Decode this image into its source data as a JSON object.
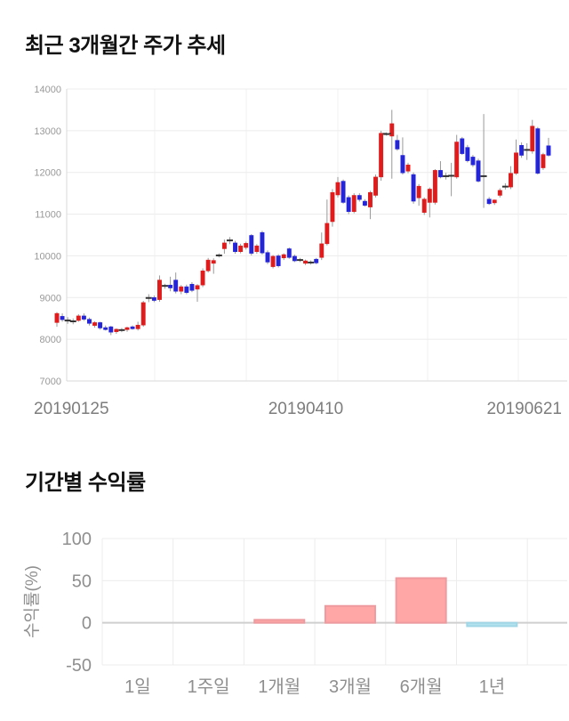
{
  "sections": {
    "price_trend": {
      "title": "최근 3개월간 주가 추세"
    },
    "period_returns": {
      "title": "기간별 수익률"
    }
  },
  "chart_data": [
    {
      "id": "price_trend",
      "type": "candlestick",
      "title": "최근 3개월간 주가 추세",
      "y_axis": {
        "min": 7000,
        "max": 14000,
        "ticks": [
          14000,
          13000,
          12000,
          11000,
          10000,
          9000,
          8000,
          7000
        ]
      },
      "x_axis": {
        "labels": [
          "20190125",
          "20190410",
          "20190621"
        ]
      },
      "grid": true,
      "legend": "none",
      "colors": {
        "up": "#e01b1b",
        "down": "#2424d9",
        "wick": "#999999",
        "doji_dash": "#333333",
        "grid": "#ececec",
        "vgrid": "#f2f2f2",
        "axis": "#d9d9d9",
        "tick_text": "#999999",
        "date_text": "#7d7d7d"
      },
      "annotations": [
        {
          "type": "dashed-line",
          "price": 12930,
          "from_index": 60,
          "to_index": 62
        }
      ],
      "candles_format": [
        "open",
        "high",
        "low",
        "close"
      ],
      "candles": [
        [
          8400,
          8650,
          8300,
          8620
        ],
        [
          8550,
          8620,
          8420,
          8470
        ],
        [
          8450,
          8530,
          8370,
          8450
        ],
        [
          8430,
          8500,
          8360,
          8430
        ],
        [
          8450,
          8600,
          8420,
          8560
        ],
        [
          8560,
          8620,
          8440,
          8480
        ],
        [
          8480,
          8520,
          8330,
          8380
        ],
        [
          8330,
          8430,
          8280,
          8400
        ],
        [
          8400,
          8420,
          8230,
          8270
        ],
        [
          8280,
          8330,
          8210,
          8230
        ],
        [
          8300,
          8320,
          8100,
          8170
        ],
        [
          8180,
          8260,
          8130,
          8240
        ],
        [
          8220,
          8270,
          8170,
          8220
        ],
        [
          8230,
          8300,
          8180,
          8280
        ],
        [
          8300,
          8330,
          8230,
          8250
        ],
        [
          8250,
          8420,
          8210,
          8340
        ],
        [
          8340,
          8920,
          8300,
          8880
        ],
        [
          8990,
          9080,
          8890,
          8990
        ],
        [
          9000,
          9050,
          8890,
          8930
        ],
        [
          8950,
          9530,
          8900,
          9420
        ],
        [
          9280,
          9330,
          9210,
          9280
        ],
        [
          9300,
          9500,
          9150,
          9230
        ],
        [
          9420,
          9600,
          9100,
          9150
        ],
        [
          9150,
          9300,
          9080,
          9260
        ],
        [
          9260,
          9310,
          9080,
          9120
        ],
        [
          9320,
          9370,
          9130,
          9170
        ],
        [
          9200,
          9320,
          8900,
          9290
        ],
        [
          9300,
          9700,
          9250,
          9640
        ],
        [
          9640,
          9950,
          9600,
          9900
        ],
        [
          9820,
          9940,
          9570,
          9890
        ],
        [
          10010,
          10060,
          9960,
          10010
        ],
        [
          10170,
          10390,
          10050,
          10310
        ],
        [
          10370,
          10450,
          10280,
          10370
        ],
        [
          10310,
          10360,
          10050,
          10100
        ],
        [
          10100,
          10290,
          10060,
          10240
        ],
        [
          10200,
          10340,
          10150,
          10300
        ],
        [
          10490,
          10520,
          10010,
          10060
        ],
        [
          10100,
          10280,
          10050,
          10240
        ],
        [
          10560,
          10600,
          10030,
          10070
        ],
        [
          10080,
          10130,
          9800,
          9850
        ],
        [
          9740,
          10020,
          9700,
          9990
        ],
        [
          10000,
          10040,
          9720,
          9760
        ],
        [
          9950,
          10060,
          9900,
          10030
        ],
        [
          10170,
          10200,
          9930,
          9960
        ],
        [
          9990,
          10030,
          9850,
          9880
        ],
        [
          9900,
          9950,
          9850,
          9900
        ],
        [
          9820,
          9910,
          9780,
          9880
        ],
        [
          9840,
          9890,
          9790,
          9840
        ],
        [
          9920,
          9950,
          9800,
          9830
        ],
        [
          9960,
          10560,
          9900,
          10290
        ],
        [
          10290,
          11350,
          10250,
          10780
        ],
        [
          10820,
          11600,
          10700,
          11520
        ],
        [
          11460,
          11890,
          11400,
          11760
        ],
        [
          11790,
          11830,
          11250,
          11280
        ],
        [
          11400,
          11450,
          11000,
          11060
        ],
        [
          11060,
          11500,
          11020,
          11450
        ],
        [
          11450,
          11500,
          11300,
          11350
        ],
        [
          11310,
          11360,
          11180,
          11210
        ],
        [
          11170,
          11560,
          10880,
          11520
        ],
        [
          11450,
          11950,
          11400,
          11890
        ],
        [
          11890,
          13000,
          11800,
          12940
        ],
        [
          12920,
          12960,
          12880,
          12920
        ],
        [
          12870,
          13500,
          11850,
          13170
        ],
        [
          12770,
          12900,
          12520,
          12560
        ],
        [
          12410,
          12840,
          11950,
          11990
        ],
        [
          12030,
          12230,
          11980,
          12180
        ],
        [
          11950,
          12000,
          11250,
          11310
        ],
        [
          11390,
          11720,
          11200,
          11670
        ],
        [
          11040,
          11400,
          10980,
          11360
        ],
        [
          11280,
          11640,
          10920,
          11600
        ],
        [
          11280,
          12080,
          11230,
          12050
        ],
        [
          12050,
          12270,
          11860,
          11890
        ],
        [
          11910,
          11990,
          11830,
          11910
        ],
        [
          11920,
          12230,
          11430,
          11920
        ],
        [
          11890,
          12900,
          11850,
          12730
        ],
        [
          12810,
          12850,
          12420,
          12450
        ],
        [
          12600,
          12660,
          12240,
          12280
        ],
        [
          12370,
          12420,
          12130,
          12180
        ],
        [
          12280,
          12330,
          11760,
          11790
        ],
        [
          11910,
          13400,
          11150,
          11910
        ],
        [
          11360,
          11410,
          11220,
          11250
        ],
        [
          11270,
          11350,
          11220,
          11340
        ],
        [
          11450,
          11620,
          11400,
          11570
        ],
        [
          11660,
          11740,
          11590,
          11660
        ],
        [
          11650,
          12150,
          11600,
          11980
        ],
        [
          11980,
          12790,
          11940,
          12470
        ],
        [
          12650,
          12720,
          12350,
          12410
        ],
        [
          12540,
          12700,
          12300,
          12540
        ],
        [
          12510,
          13260,
          12450,
          13110
        ],
        [
          13050,
          13090,
          11950,
          11980
        ],
        [
          12110,
          12470,
          12060,
          12430
        ],
        [
          12640,
          12830,
          12380,
          12410
        ]
      ]
    },
    {
      "id": "period_returns",
      "type": "bar",
      "title": "기간별 수익률",
      "categories": [
        "1일",
        "1주일",
        "1개월",
        "3개월",
        "6개월",
        "1년"
      ],
      "values": [
        0,
        0,
        3.5,
        20,
        53,
        -4
      ],
      "xlabel": "",
      "ylabel": "수익률(%)",
      "y_ticks": [
        100,
        50,
        0,
        -50
      ],
      "ylim": [
        -50,
        100
      ],
      "grid": true,
      "legend": "none",
      "colors": {
        "positive_fill": "#ffa6a6",
        "positive_border": "#ee9a9f",
        "negative_fill": "#b3e2ee",
        "negative_border": "#a0d6e6",
        "grid": "#ececec",
        "zero_line": "#cfcfcf",
        "text": "#8f8f8f"
      }
    }
  ]
}
